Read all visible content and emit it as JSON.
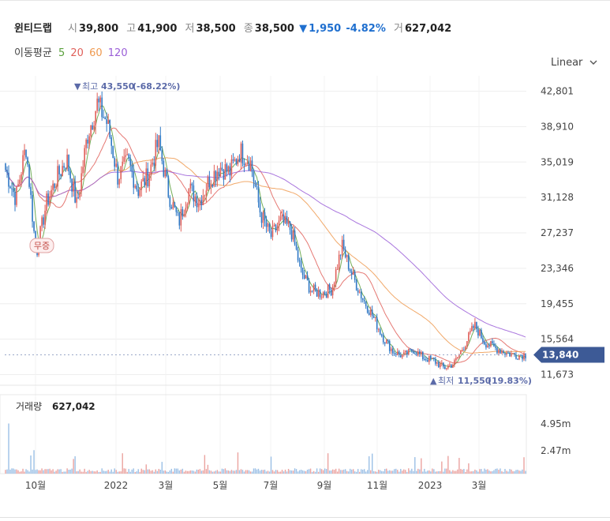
{
  "header": {
    "stock_name": "윈티드랩",
    "open_label": "시",
    "open": "39,800",
    "high_label": "고",
    "high": "41,900",
    "low_label": "저",
    "low": "38,500",
    "close_label": "종",
    "close": "38,500",
    "change_arrow": "▼",
    "change": "1,950",
    "change_pct": "-4.82%",
    "volume_label": "거",
    "volume": "627,042"
  },
  "moving_average": {
    "label": "이동평균",
    "periods": [
      {
        "value": "5",
        "color": "#5aa03c"
      },
      {
        "value": "20",
        "color": "#e0605a"
      },
      {
        "value": "60",
        "color": "#ef9a50"
      },
      {
        "value": "120",
        "color": "#9b5fd8"
      }
    ]
  },
  "scale_selector": {
    "label": "Linear"
  },
  "colors": {
    "up": "#e0605a",
    "down": "#2f78c5",
    "current_price_bg": "#3d5a96",
    "annotation": "#5b6aa8",
    "grid": "#eeeeee"
  },
  "chart_data": {
    "type": "candlestick",
    "y_ticks": [
      "42,801",
      "38,910",
      "35,019",
      "31,128",
      "27,237",
      "23,346",
      "19,455",
      "15,564",
      "11,673"
    ],
    "ylim": [
      10500,
      44500
    ],
    "x_ticks": [
      "10월",
      "2022",
      "3월",
      "5월",
      "7월",
      "9월",
      "11월",
      "2023",
      "3월"
    ],
    "current_price": "13,840",
    "annotations": {
      "high": {
        "marker": "▼",
        "label": "최고",
        "value": "43,550",
        "pct": "(-68.22%)"
      },
      "low": {
        "marker": "▲",
        "label": "최저",
        "value": "11,550",
        "pct": "(19.83%)"
      },
      "badge": "무증"
    },
    "close_series": [
      34200,
      31000,
      36800,
      24800,
      30500,
      33200,
      35400,
      30200,
      37800,
      41500,
      39200,
      33400,
      35100,
      31900,
      33600,
      37200,
      31500,
      28400,
      32100,
      30700,
      33100,
      34500,
      33900,
      36200,
      35100,
      29400,
      26800,
      28500,
      27600,
      22900,
      20900,
      20600,
      21100,
      25800,
      22600,
      20100,
      18100,
      15800,
      14200,
      13700,
      14400,
      13500,
      13200,
      12400,
      12900,
      14900,
      17100,
      15200,
      14600,
      14100,
      13800,
      13840
    ],
    "volume": {
      "label": "거래량",
      "value": "627,042",
      "y_ticks": [
        "4.95m",
        "2.47m"
      ],
      "ylim": [
        0,
        7400000
      ]
    }
  }
}
